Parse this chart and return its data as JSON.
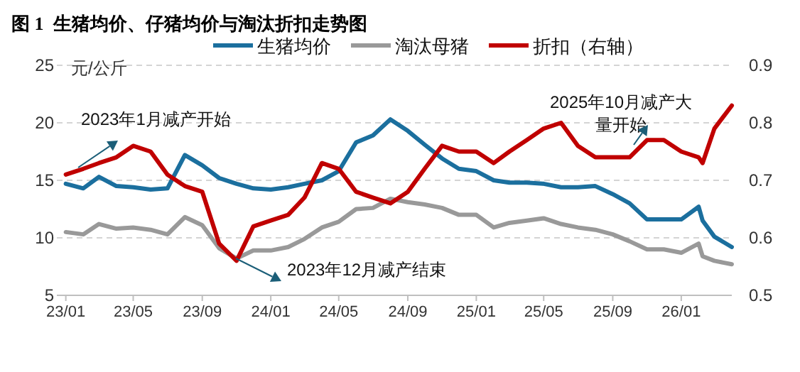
{
  "chart_data": {
    "type": "line",
    "title": "图 1  生猪均价、仔猪均价与淘汰折扣走势图",
    "ylabel": "元/公斤",
    "xlim": [
      "2022-12-16",
      "2026-04-01"
    ],
    "xticks": [
      {
        "value": "2023-01-01",
        "label": "23/01"
      },
      {
        "value": "2023-05-01",
        "label": "23/05"
      },
      {
        "value": "2023-09-01",
        "label": "23/09"
      },
      {
        "value": "2024-01-01",
        "label": "24/01"
      },
      {
        "value": "2024-05-01",
        "label": "24/05"
      },
      {
        "value": "2024-09-01",
        "label": "24/09"
      },
      {
        "value": "2025-01-01",
        "label": "25/01"
      },
      {
        "value": "2025-05-01",
        "label": "25/05"
      },
      {
        "value": "2025-09-01",
        "label": "25/09"
      },
      {
        "value": "2026-01-01",
        "label": "26/01"
      }
    ],
    "ylim": [
      5,
      25
    ],
    "yticks": [
      5,
      10,
      15,
      20,
      25
    ],
    "y2lim": [
      0.5,
      0.9
    ],
    "y2ticks": [
      {
        "value": 0.5,
        "label": "0.5"
      },
      {
        "value": 0.6,
        "label": "0.6"
      },
      {
        "value": 0.7,
        "label": "0.7"
      },
      {
        "value": 0.8,
        "label": "0.8"
      },
      {
        "value": 0.9,
        "label": "0.9"
      }
    ],
    "grid": "y",
    "legend": "top",
    "marker": "none",
    "line_style": "solid",
    "x": [
      "2023-01-01",
      "2023-02-01",
      "2023-03-01",
      "2023-04-01",
      "2023-05-01",
      "2023-06-01",
      "2023-07-01",
      "2023-08-01",
      "2023-09-01",
      "2023-10-01",
      "2023-11-01",
      "2023-12-01",
      "2024-01-01",
      "2024-02-01",
      "2024-03-01",
      "2024-04-01",
      "2024-05-01",
      "2024-06-01",
      "2024-07-01",
      "2024-08-01",
      "2024-09-01",
      "2024-10-01",
      "2024-11-01",
      "2024-12-01",
      "2025-01-01",
      "2025-02-01",
      "2025-03-01",
      "2025-04-01",
      "2025-05-01",
      "2025-06-01",
      "2025-07-01",
      "2025-08-01",
      "2025-09-01",
      "2025-10-01",
      "2025-11-01",
      "2025-12-01",
      "2026-01-01",
      "2026-02-01",
      "2026-02-08",
      "2026-03-01",
      "2026-04-01"
    ],
    "series": [
      {
        "name": "生猪均价",
        "color": "#1b6f9e",
        "values": [
          14.7,
          14.3,
          15.3,
          14.5,
          14.4,
          14.2,
          14.3,
          17.2,
          16.3,
          15.2,
          14.7,
          14.3,
          14.2,
          14.4,
          14.7,
          15.0,
          15.8,
          18.3,
          18.9,
          20.3,
          19.3,
          18.1,
          16.9,
          16.0,
          15.8,
          15.0,
          14.8,
          14.8,
          14.7,
          14.4,
          14.4,
          14.5,
          13.8,
          13.0,
          11.6,
          11.6,
          11.6,
          12.7,
          11.5,
          10.1,
          9.2
        ]
      },
      {
        "name": "淘汰母猪",
        "color": "#999999",
        "values": [
          10.5,
          10.3,
          11.2,
          10.8,
          10.9,
          10.7,
          10.3,
          11.8,
          11.1,
          9.1,
          8.2,
          8.9,
          8.9,
          9.2,
          9.9,
          10.9,
          11.4,
          12.5,
          12.6,
          13.4,
          13.1,
          12.9,
          12.6,
          12.0,
          12.0,
          10.9,
          11.3,
          11.5,
          11.7,
          11.2,
          10.9,
          10.7,
          10.3,
          9.7,
          9.0,
          9.0,
          8.7,
          9.5,
          8.4,
          8.0,
          7.7
        ]
      },
      {
        "name": "折扣（右轴）",
        "color": "#c00000",
        "axis": "y2",
        "values": [
          0.71,
          0.72,
          0.73,
          0.74,
          0.76,
          0.75,
          0.71,
          0.69,
          0.68,
          0.59,
          0.56,
          0.62,
          0.63,
          0.64,
          0.67,
          0.73,
          0.72,
          0.68,
          0.67,
          0.66,
          0.68,
          0.72,
          0.76,
          0.75,
          0.75,
          0.73,
          0.75,
          0.77,
          0.79,
          0.8,
          0.76,
          0.74,
          0.74,
          0.74,
          0.77,
          0.77,
          0.75,
          0.74,
          0.73,
          0.79,
          0.83
        ]
      }
    ],
    "annotations": [
      "2023年1月减产开始",
      "2023年12月减产结束",
      "2025年10月减产大量开始"
    ]
  }
}
